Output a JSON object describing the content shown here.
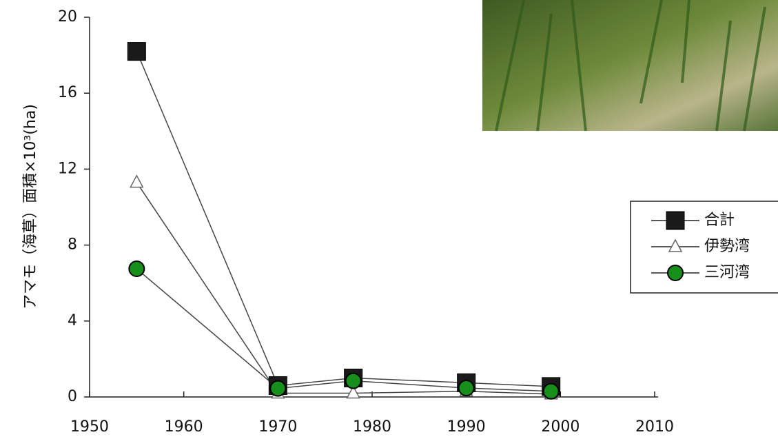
{
  "chart_data": {
    "type": "line",
    "y_label": "アマモ（海草）面積×10³(ha)",
    "x": [
      1955,
      1970,
      1978,
      1990,
      1999
    ],
    "series": [
      {
        "name": "合計",
        "color": "#1a1a1a",
        "marker": "square",
        "values": [
          18.2,
          0.6,
          1.0,
          0.75,
          0.55
        ]
      },
      {
        "name": "伊勢湾",
        "color": "#ffffff",
        "marker": "triangle",
        "values": [
          11.3,
          0.2,
          0.2,
          0.3,
          0.15
        ]
      },
      {
        "name": "三河湾",
        "color": "#16901a",
        "marker": "circle",
        "values": [
          6.75,
          0.45,
          0.85,
          0.47,
          0.3
        ]
      }
    ],
    "xlim": [
      1950,
      2010
    ],
    "xticks": [
      1950,
      1960,
      1970,
      1980,
      1990,
      2000,
      2010
    ],
    "ylim": [
      0,
      20
    ],
    "yticks": [
      0,
      4,
      8,
      12,
      16,
      20
    ],
    "legend": "right"
  }
}
